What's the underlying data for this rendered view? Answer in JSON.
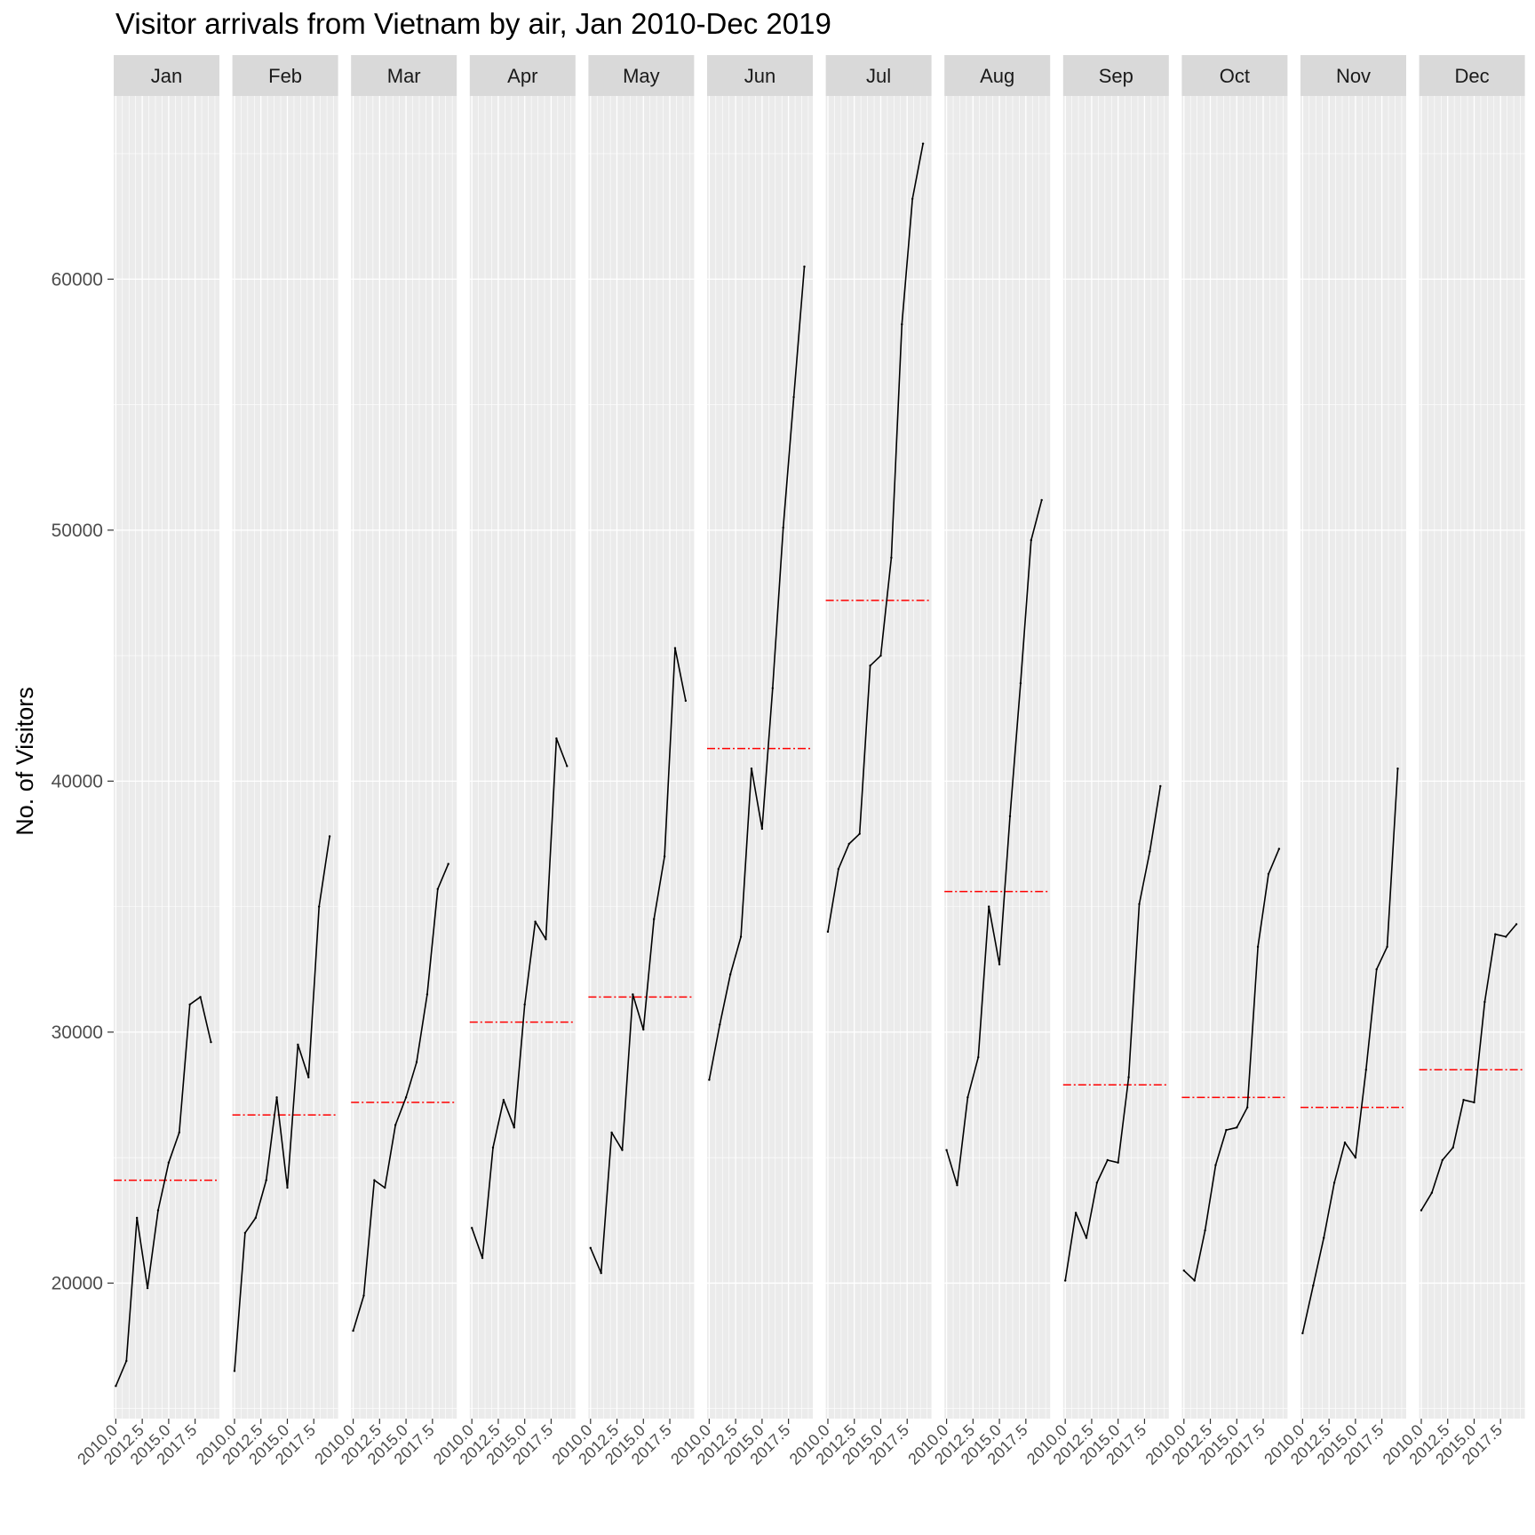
{
  "chart_data": {
    "type": "line",
    "title": "Visitor arrivals from Vietnam by air, Jan 2010-Dec 2019",
    "xlabel": "",
    "ylabel": "No. of Visitors",
    "facets": [
      "Jan",
      "Feb",
      "Mar",
      "Apr",
      "May",
      "Jun",
      "Jul",
      "Aug",
      "Sep",
      "Oct",
      "Nov",
      "Dec"
    ],
    "x": [
      2010,
      2011,
      2012,
      2013,
      2014,
      2015,
      2016,
      2017,
      2018,
      2019
    ],
    "xticks": [
      2010.0,
      2012.5,
      2015.0,
      2017.5
    ],
    "xtick_labels": [
      "2010.0",
      "2012.5",
      "2015.0",
      "2017.5"
    ],
    "xlim": [
      2009.8,
      2019.8
    ],
    "yticks": [
      20000,
      30000,
      40000,
      50000,
      60000
    ],
    "ytick_labels": [
      "20000",
      "30000",
      "40000",
      "50000",
      "60000"
    ],
    "ylim": [
      14600,
      67300
    ],
    "grid": true,
    "series": [
      {
        "facet": "Jan",
        "values": [
          15900,
          16900,
          22600,
          19800,
          22900,
          24800,
          26000,
          31100,
          31400,
          29600
        ],
        "mean": 24100
      },
      {
        "facet": "Feb",
        "values": [
          16500,
          22000,
          22600,
          24100,
          27400,
          23800,
          29500,
          28200,
          35000,
          37800
        ],
        "mean": 26700
      },
      {
        "facet": "Mar",
        "values": [
          18100,
          19500,
          24100,
          23800,
          26300,
          27400,
          28800,
          31500,
          35700,
          36700
        ],
        "mean": 27200
      },
      {
        "facet": "Apr",
        "values": [
          22200,
          21000,
          25400,
          27300,
          26200,
          31100,
          34400,
          33700,
          41700,
          40600
        ],
        "mean": 30400
      },
      {
        "facet": "May",
        "values": [
          21400,
          20400,
          26000,
          25300,
          31500,
          30100,
          34500,
          37000,
          45300,
          43200
        ],
        "mean": 31400
      },
      {
        "facet": "Jun",
        "values": [
          28100,
          30300,
          32300,
          33800,
          40500,
          38100,
          43700,
          50100,
          55300,
          60500
        ],
        "mean": 41300
      },
      {
        "facet": "Jul",
        "values": [
          34000,
          36500,
          37500,
          37900,
          44600,
          45000,
          48900,
          58200,
          63200,
          65400
        ],
        "mean": 47200
      },
      {
        "facet": "Aug",
        "values": [
          25300,
          23900,
          27400,
          29000,
          35000,
          32700,
          38600,
          43900,
          49600,
          51200
        ],
        "mean": 35600
      },
      {
        "facet": "Sep",
        "values": [
          20100,
          22800,
          21800,
          24000,
          24900,
          24800,
          28200,
          35100,
          37200,
          39800
        ],
        "mean": 27900
      },
      {
        "facet": "Oct",
        "values": [
          20500,
          20100,
          22100,
          24700,
          26100,
          26200,
          27000,
          33400,
          36300,
          37300
        ],
        "mean": 27400
      },
      {
        "facet": "Nov",
        "values": [
          18000,
          19900,
          21800,
          24000,
          25600,
          25000,
          28500,
          32500,
          33400,
          40500
        ],
        "mean": 27000
      },
      {
        "facet": "Dec",
        "values": [
          22900,
          23600,
          24900,
          25400,
          27300,
          27200,
          31200,
          33900,
          33800,
          34300
        ],
        "mean": 28500
      }
    ],
    "mean_line_color": "#ff0000",
    "line_color": "#000000",
    "panel_background": "#ebebeb",
    "strip_background": "#d9d9d9",
    "grid_color": "#ffffff"
  }
}
